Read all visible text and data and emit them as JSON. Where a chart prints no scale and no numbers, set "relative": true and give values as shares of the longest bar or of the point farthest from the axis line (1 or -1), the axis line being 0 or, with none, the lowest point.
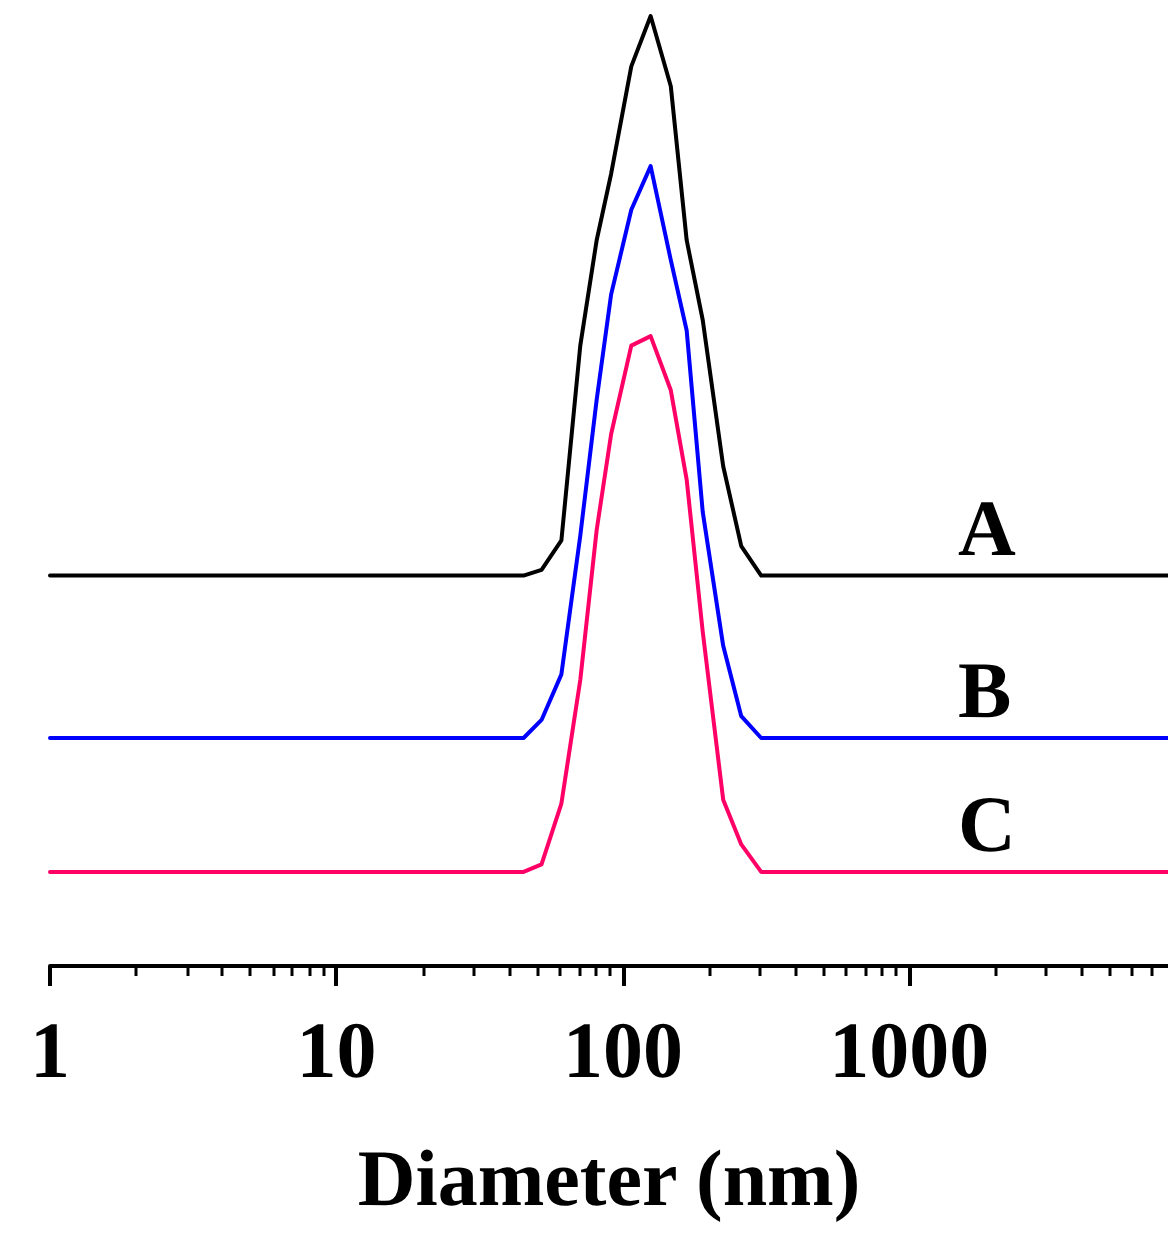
{
  "chart_data": {
    "type": "line",
    "relative": true,
    "xlabel": "Diameter (nm)",
    "log": "x",
    "xlim": [
      1,
      8000
    ],
    "xticks": [
      1,
      10,
      100,
      1000
    ],
    "grid": false,
    "legend": false,
    "marker": "none",
    "line_style": "solid",
    "x": [
      1,
      45,
      52,
      61,
      71,
      81,
      91,
      107,
      125,
      147,
      167,
      190,
      224,
      259,
      304,
      8000
    ],
    "series": [
      {
        "name": "A",
        "color": "#000000",
        "values": [
          0.411,
          0.411,
          0.417,
          0.448,
          0.653,
          0.764,
          0.834,
          0.947,
          1.0,
          0.926,
          0.764,
          0.68,
          0.526,
          0.442,
          0.411,
          0.411
        ]
      },
      {
        "name": "B",
        "color": "#0000ff",
        "values": [
          0.24,
          0.24,
          0.259,
          0.307,
          0.453,
          0.596,
          0.707,
          0.796,
          0.842,
          0.743,
          0.669,
          0.478,
          0.337,
          0.263,
          0.24,
          0.24
        ]
      },
      {
        "name": "C",
        "color": "#ff0066",
        "values": [
          0.099,
          0.099,
          0.107,
          0.171,
          0.301,
          0.459,
          0.56,
          0.653,
          0.663,
          0.606,
          0.512,
          0.352,
          0.175,
          0.128,
          0.099,
          0.099
        ]
      }
    ]
  }
}
